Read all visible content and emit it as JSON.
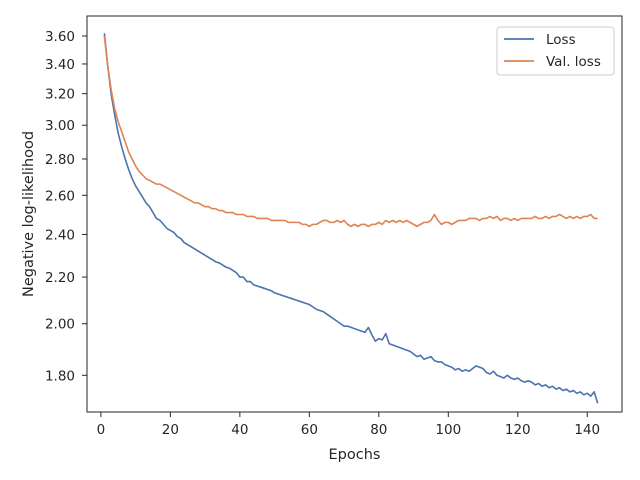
{
  "chart_data": {
    "type": "line",
    "title": "",
    "xlabel": "Epochs",
    "ylabel": "Negative log-likelihood",
    "yscale": "log",
    "xlim": [
      -4,
      150
    ],
    "ylim": [
      1.67,
      3.75
    ],
    "xticks": [
      0,
      20,
      40,
      60,
      80,
      100,
      120,
      140
    ],
    "xtick_labels": [
      "0",
      "20",
      "40",
      "60",
      "80",
      "100",
      "120",
      "140"
    ],
    "yticks": [
      1.8,
      2.0,
      2.2,
      2.4,
      2.6,
      2.8,
      3.0,
      3.2,
      3.4,
      3.6
    ],
    "ytick_labels": [
      "1.80",
      "2.00",
      "2.20",
      "2.40",
      "2.60",
      "2.80",
      "3.00",
      "3.20",
      "3.40",
      "3.60"
    ],
    "grid": false,
    "legend": {
      "position": "top-right"
    },
    "series": [
      {
        "name": "Loss",
        "color": "#4c72b0",
        "x": [
          1,
          2,
          3,
          4,
          5,
          6,
          7,
          8,
          9,
          10,
          11,
          12,
          13,
          14,
          15,
          16,
          17,
          18,
          19,
          20,
          21,
          22,
          23,
          24,
          25,
          26,
          27,
          28,
          29,
          30,
          31,
          32,
          33,
          34,
          35,
          36,
          37,
          38,
          39,
          40,
          41,
          42,
          43,
          44,
          45,
          46,
          47,
          48,
          49,
          50,
          51,
          52,
          53,
          54,
          55,
          56,
          57,
          58,
          59,
          60,
          61,
          62,
          63,
          64,
          65,
          66,
          67,
          68,
          69,
          70,
          71,
          72,
          73,
          74,
          75,
          76,
          77,
          78,
          79,
          80,
          81,
          82,
          83,
          84,
          85,
          86,
          87,
          88,
          89,
          90,
          91,
          92,
          93,
          94,
          95,
          96,
          97,
          98,
          99,
          100,
          101,
          102,
          103,
          104,
          105,
          106,
          107,
          108,
          109,
          110,
          111,
          112,
          113,
          114,
          115,
          116,
          117,
          118,
          119,
          120,
          121,
          122,
          123,
          124,
          125,
          126,
          127,
          128,
          129,
          130,
          131,
          132,
          133,
          134,
          135,
          136,
          137,
          138,
          139,
          140,
          141,
          142,
          143
        ],
        "values": [
          3.62,
          3.38,
          3.19,
          3.06,
          2.95,
          2.87,
          2.8,
          2.74,
          2.69,
          2.65,
          2.62,
          2.59,
          2.56,
          2.54,
          2.51,
          2.48,
          2.47,
          2.45,
          2.43,
          2.42,
          2.41,
          2.39,
          2.38,
          2.36,
          2.35,
          2.34,
          2.33,
          2.32,
          2.31,
          2.3,
          2.29,
          2.28,
          2.27,
          2.265,
          2.255,
          2.245,
          2.24,
          2.23,
          2.22,
          2.2,
          2.2,
          2.18,
          2.18,
          2.165,
          2.16,
          2.155,
          2.15,
          2.145,
          2.14,
          2.13,
          2.125,
          2.12,
          2.115,
          2.11,
          2.105,
          2.1,
          2.095,
          2.09,
          2.085,
          2.08,
          2.07,
          2.06,
          2.055,
          2.05,
          2.04,
          2.03,
          2.02,
          2.01,
          2.0,
          1.99,
          1.99,
          1.985,
          1.98,
          1.975,
          1.97,
          1.965,
          1.985,
          1.955,
          1.93,
          1.94,
          1.935,
          1.96,
          1.92,
          1.915,
          1.91,
          1.905,
          1.9,
          1.895,
          1.89,
          1.88,
          1.87,
          1.875,
          1.86,
          1.865,
          1.87,
          1.855,
          1.85,
          1.85,
          1.84,
          1.835,
          1.83,
          1.82,
          1.825,
          1.815,
          1.82,
          1.815,
          1.825,
          1.835,
          1.83,
          1.825,
          1.81,
          1.805,
          1.815,
          1.8,
          1.795,
          1.79,
          1.8,
          1.79,
          1.785,
          1.79,
          1.78,
          1.775,
          1.78,
          1.775,
          1.765,
          1.77,
          1.76,
          1.765,
          1.755,
          1.76,
          1.75,
          1.755,
          1.745,
          1.75,
          1.74,
          1.745,
          1.735,
          1.74,
          1.73,
          1.735,
          1.725,
          1.74,
          1.7
        ]
      },
      {
        "name": "Val. loss",
        "color": "#dd8452",
        "x": [
          1,
          2,
          3,
          4,
          5,
          6,
          7,
          8,
          9,
          10,
          11,
          12,
          13,
          14,
          15,
          16,
          17,
          18,
          19,
          20,
          21,
          22,
          23,
          24,
          25,
          26,
          27,
          28,
          29,
          30,
          31,
          32,
          33,
          34,
          35,
          36,
          37,
          38,
          39,
          40,
          41,
          42,
          43,
          44,
          45,
          46,
          47,
          48,
          49,
          50,
          51,
          52,
          53,
          54,
          55,
          56,
          57,
          58,
          59,
          60,
          61,
          62,
          63,
          64,
          65,
          66,
          67,
          68,
          69,
          70,
          71,
          72,
          73,
          74,
          75,
          76,
          77,
          78,
          79,
          80,
          81,
          82,
          83,
          84,
          85,
          86,
          87,
          88,
          89,
          90,
          91,
          92,
          93,
          94,
          95,
          96,
          97,
          98,
          99,
          100,
          101,
          102,
          103,
          104,
          105,
          106,
          107,
          108,
          109,
          110,
          111,
          112,
          113,
          114,
          115,
          116,
          117,
          118,
          119,
          120,
          121,
          122,
          123,
          124,
          125,
          126,
          127,
          128,
          129,
          130,
          131,
          132,
          133,
          134,
          135,
          136,
          137,
          138,
          139,
          140,
          141,
          142,
          143
        ],
        "values": [
          3.6,
          3.38,
          3.22,
          3.1,
          3.02,
          2.96,
          2.9,
          2.84,
          2.8,
          2.76,
          2.73,
          2.71,
          2.69,
          2.68,
          2.67,
          2.66,
          2.66,
          2.65,
          2.64,
          2.63,
          2.62,
          2.61,
          2.6,
          2.59,
          2.58,
          2.57,
          2.56,
          2.56,
          2.55,
          2.54,
          2.54,
          2.53,
          2.53,
          2.52,
          2.52,
          2.51,
          2.51,
          2.51,
          2.5,
          2.5,
          2.5,
          2.49,
          2.49,
          2.49,
          2.48,
          2.48,
          2.48,
          2.48,
          2.47,
          2.47,
          2.47,
          2.47,
          2.47,
          2.46,
          2.46,
          2.46,
          2.46,
          2.45,
          2.45,
          2.44,
          2.45,
          2.45,
          2.46,
          2.47,
          2.47,
          2.46,
          2.46,
          2.47,
          2.46,
          2.47,
          2.45,
          2.44,
          2.45,
          2.44,
          2.45,
          2.45,
          2.44,
          2.45,
          2.45,
          2.46,
          2.45,
          2.47,
          2.46,
          2.47,
          2.46,
          2.47,
          2.46,
          2.47,
          2.46,
          2.45,
          2.44,
          2.45,
          2.46,
          2.46,
          2.47,
          2.5,
          2.47,
          2.45,
          2.46,
          2.46,
          2.45,
          2.46,
          2.47,
          2.47,
          2.47,
          2.48,
          2.48,
          2.48,
          2.47,
          2.48,
          2.48,
          2.49,
          2.48,
          2.49,
          2.47,
          2.48,
          2.48,
          2.47,
          2.48,
          2.47,
          2.48,
          2.48,
          2.48,
          2.48,
          2.49,
          2.48,
          2.48,
          2.49,
          2.48,
          2.49,
          2.49,
          2.5,
          2.49,
          2.48,
          2.49,
          2.48,
          2.49,
          2.48,
          2.49,
          2.49,
          2.5,
          2.48,
          2.48
        ]
      }
    ]
  }
}
